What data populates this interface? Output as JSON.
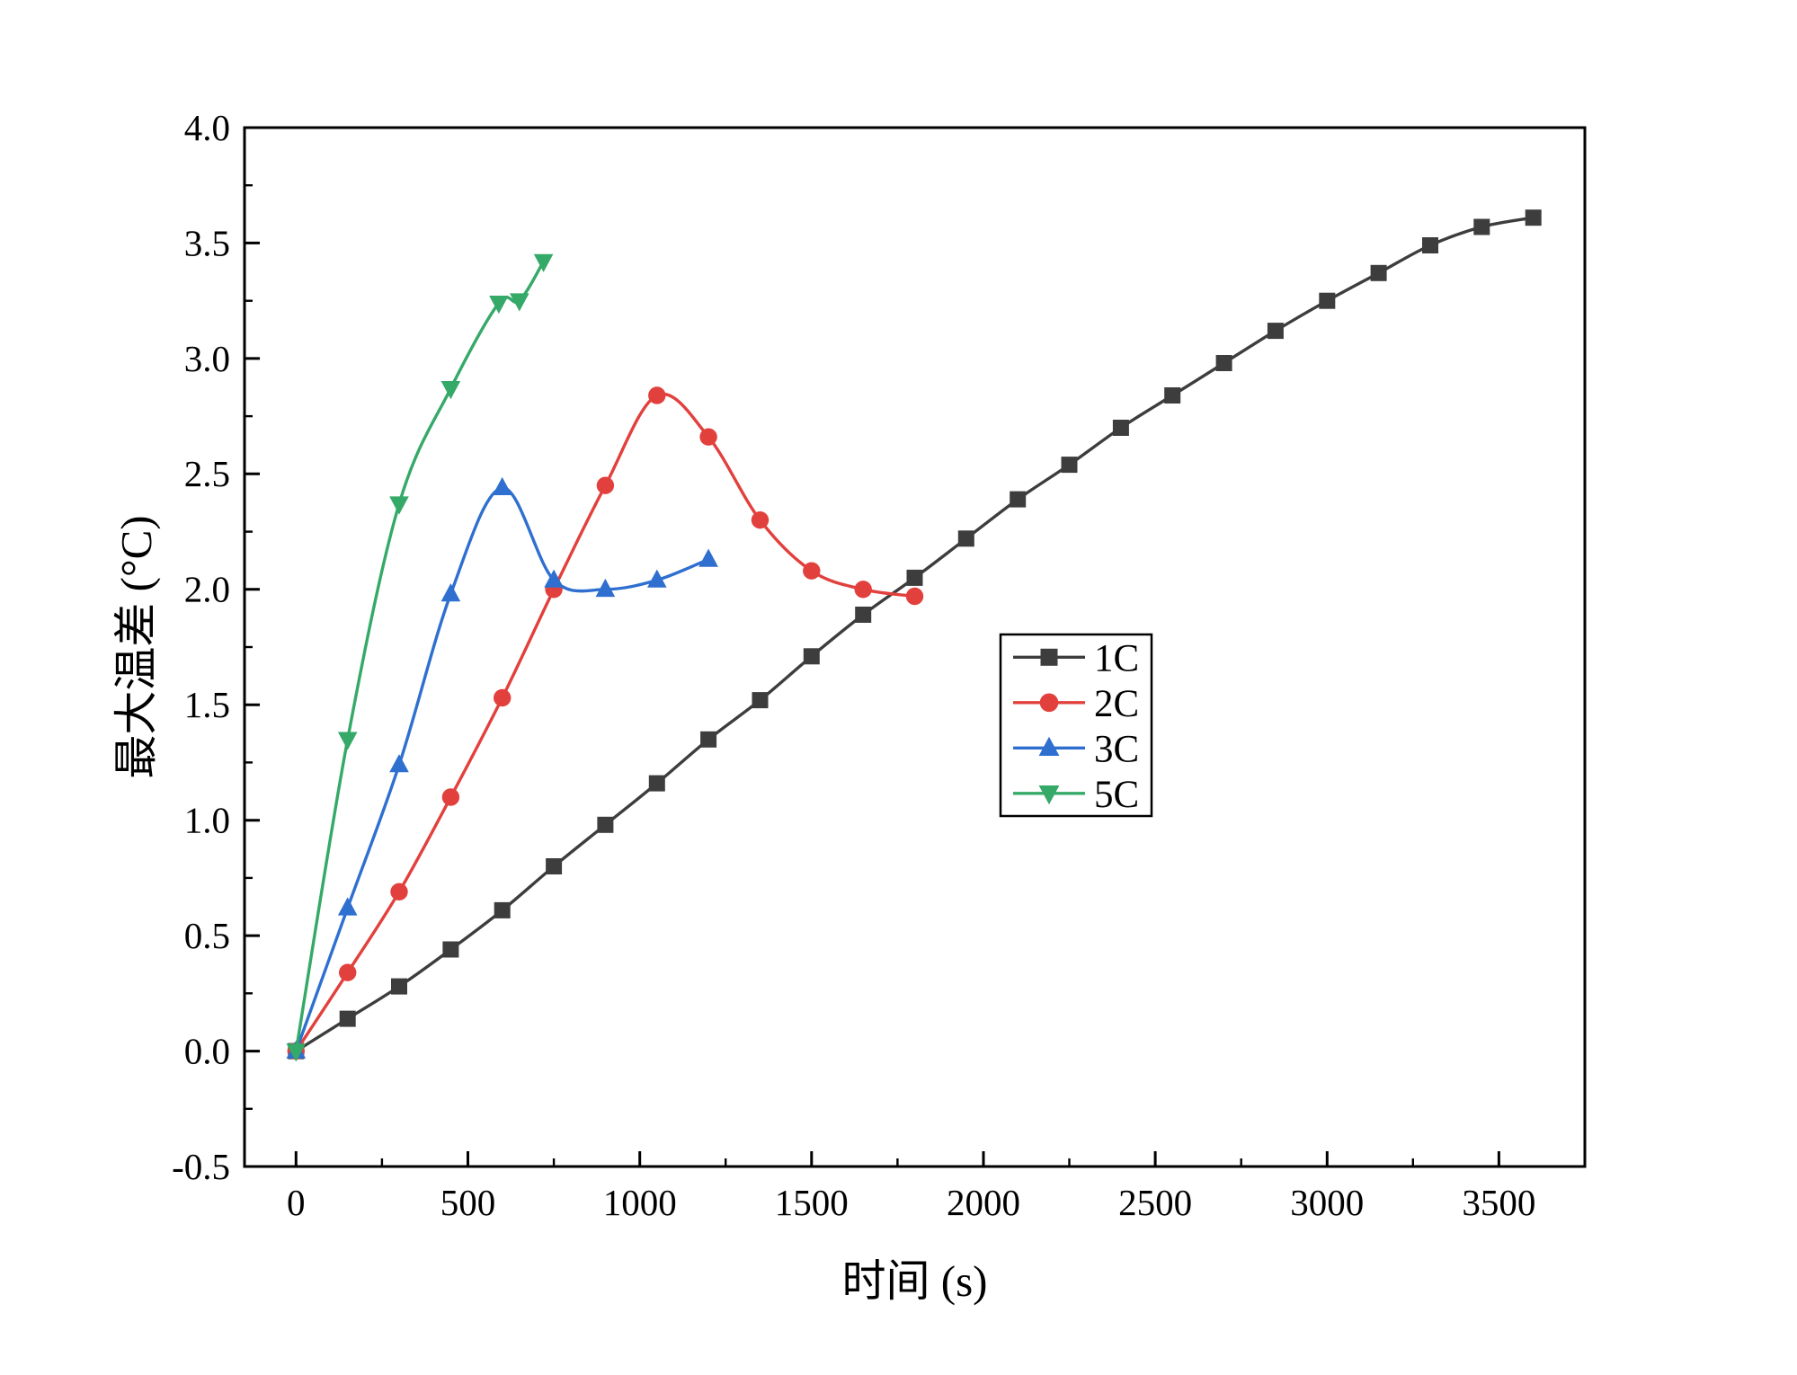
{
  "figure": {
    "background": "#ffffff"
  },
  "chart_data": {
    "type": "line",
    "title": "",
    "xlabel": "时间 (s)",
    "ylabel": "最大温差 (°C)",
    "xlim": [
      -150,
      3750
    ],
    "ylim": [
      -0.5,
      4.0
    ],
    "xticks": [
      0,
      500,
      1000,
      1500,
      2000,
      2500,
      3000,
      3500
    ],
    "xtick_labels": [
      "0",
      "500",
      "1000",
      "1500",
      "2000",
      "2500",
      "3000",
      "3500"
    ],
    "x_minor_step": 250,
    "yticks": [
      -0.5,
      0.0,
      0.5,
      1.0,
      1.5,
      2.0,
      2.5,
      3.0,
      3.5,
      4.0
    ],
    "ytick_labels": [
      "-0.5",
      "0.0",
      "0.5",
      "1.0",
      "1.5",
      "2.0",
      "2.5",
      "3.0",
      "3.5",
      "4.0"
    ],
    "y_minor_step": 0.25,
    "grid": false,
    "frame": true,
    "axis_color": "#000000",
    "legend": {
      "position": "inside-right",
      "entries": [
        "1C",
        "2C",
        "3C",
        "5C"
      ]
    },
    "series": [
      {
        "name": "1C",
        "color": "#3d3d3d",
        "marker": "square",
        "x": [
          0,
          150,
          300,
          450,
          600,
          750,
          900,
          1050,
          1200,
          1350,
          1500,
          1650,
          1800,
          1950,
          2100,
          2250,
          2400,
          2550,
          2700,
          2850,
          3000,
          3150,
          3300,
          3450,
          3600
        ],
        "y": [
          0.0,
          0.14,
          0.28,
          0.44,
          0.61,
          0.8,
          0.98,
          1.16,
          1.35,
          1.52,
          1.71,
          1.89,
          2.05,
          2.22,
          2.39,
          2.54,
          2.7,
          2.84,
          2.98,
          3.12,
          3.25,
          3.37,
          3.49,
          3.57,
          3.61
        ]
      },
      {
        "name": "2C",
        "color": "#e2403c",
        "marker": "circle",
        "x": [
          0,
          150,
          300,
          450,
          600,
          750,
          900,
          1050,
          1200,
          1350,
          1500,
          1650,
          1800
        ],
        "y": [
          0.0,
          0.34,
          0.69,
          1.1,
          1.53,
          2.0,
          2.45,
          2.84,
          2.66,
          2.3,
          2.08,
          2.0,
          1.97
        ]
      },
      {
        "name": "3C",
        "color": "#2e6fd0",
        "marker": "triangle-up",
        "x": [
          0,
          150,
          300,
          450,
          600,
          750,
          900,
          1050,
          1200
        ],
        "y": [
          0.0,
          0.62,
          1.24,
          1.98,
          2.44,
          2.04,
          2.0,
          2.04,
          2.13
        ]
      },
      {
        "name": "5C",
        "color": "#35a968",
        "marker": "triangle-down",
        "x": [
          0,
          150,
          300,
          450,
          590,
          650,
          720
        ],
        "y": [
          0.0,
          1.35,
          2.37,
          2.87,
          3.24,
          3.25,
          3.42
        ]
      }
    ]
  }
}
